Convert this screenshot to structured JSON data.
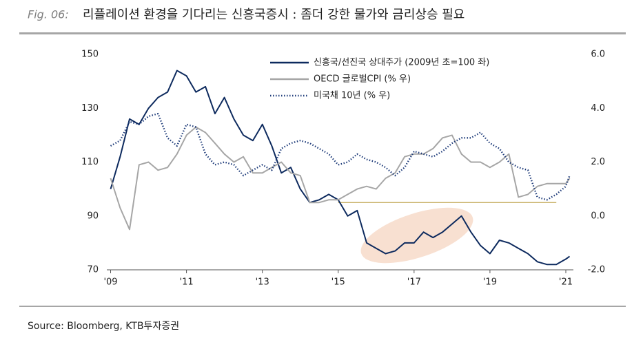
{
  "header": {
    "fig": "Fig. 06:",
    "title": "리플레이션 환경을 기다리는 신흥국증시 : 좀더 강한 물가와 금리상승 필요"
  },
  "source": "Source: Bloomberg, KTB투자증권",
  "chart_data": {
    "type": "line",
    "x": [
      2009.0,
      2009.25,
      2009.5,
      2009.75,
      2010.0,
      2010.25,
      2010.5,
      2010.75,
      2011.0,
      2011.25,
      2011.5,
      2011.75,
      2012.0,
      2012.25,
      2012.5,
      2012.75,
      2013.0,
      2013.25,
      2013.5,
      2013.75,
      2014.0,
      2014.25,
      2014.5,
      2014.75,
      2015.0,
      2015.25,
      2015.5,
      2015.75,
      2016.0,
      2016.25,
      2016.5,
      2016.75,
      2017.0,
      2017.25,
      2017.5,
      2017.75,
      2018.0,
      2018.25,
      2018.5,
      2018.75,
      2019.0,
      2019.25,
      2019.5,
      2019.75,
      2020.0,
      2020.25,
      2020.5,
      2020.75,
      2021.0,
      2021.1
    ],
    "series": [
      {
        "name": "신흥국/선진국 상대주가 (2009년 초=100 좌)",
        "color": "#0d2a5e",
        "style": "solid",
        "values": [
          100,
          112,
          126,
          124,
          130,
          134,
          136,
          144,
          142,
          136,
          138,
          128,
          134,
          126,
          120,
          118,
          124,
          116,
          106,
          108,
          100,
          95,
          96,
          98,
          96,
          90,
          92,
          80,
          78,
          76,
          77,
          80,
          80,
          84,
          82,
          84,
          87,
          90,
          84,
          79,
          76,
          81,
          80,
          78,
          76,
          73,
          72,
          72,
          74,
          75
        ]
      },
      {
        "name": "OECD 글로벌CPI (% 우)",
        "color": "#a6a6a6",
        "style": "solid",
        "axis": "y2",
        "values": [
          1.4,
          0.3,
          -0.5,
          1.9,
          2.0,
          1.7,
          1.8,
          2.3,
          3.0,
          3.3,
          3.1,
          2.7,
          2.3,
          2.0,
          2.2,
          1.6,
          1.6,
          1.8,
          2.0,
          1.6,
          1.5,
          0.5,
          0.5,
          0.6,
          0.6,
          0.8,
          1.0,
          1.1,
          1.0,
          1.4,
          1.6,
          2.2,
          2.3,
          2.3,
          2.5,
          2.9,
          3.0,
          2.3,
          2.0,
          2.0,
          1.8,
          2.0,
          2.3,
          0.7,
          0.8,
          1.1,
          1.2,
          1.2,
          1.2,
          1.4
        ]
      },
      {
        "name": "미국채 10년 (% 우)",
        "color": "#1f3c7a",
        "style": "dotted",
        "axis": "y2",
        "values": [
          2.6,
          2.8,
          3.5,
          3.4,
          3.7,
          3.8,
          2.9,
          2.6,
          3.4,
          3.3,
          2.3,
          1.9,
          2.0,
          1.9,
          1.5,
          1.7,
          1.9,
          1.7,
          2.5,
          2.7,
          2.8,
          2.7,
          2.5,
          2.3,
          1.9,
          2.0,
          2.3,
          2.1,
          2.0,
          1.8,
          1.5,
          1.8,
          2.4,
          2.3,
          2.2,
          2.4,
          2.7,
          2.9,
          2.9,
          3.1,
          2.7,
          2.5,
          2.0,
          1.8,
          1.7,
          0.7,
          0.6,
          0.8,
          1.1,
          1.5
        ]
      }
    ],
    "xlim": [
      2008.9,
      2021.2
    ],
    "xticks": [
      {
        "value": 2009,
        "label": "'09"
      },
      {
        "value": 2011,
        "label": "'11"
      },
      {
        "value": 2013,
        "label": "'13"
      },
      {
        "value": 2015,
        "label": "'15"
      },
      {
        "value": 2017,
        "label": "'17"
      },
      {
        "value": 2019,
        "label": "'19"
      },
      {
        "value": 2021,
        "label": "'21"
      }
    ],
    "ylim": [
      70,
      150
    ],
    "yticks": [
      70,
      90,
      110,
      130,
      150
    ],
    "y2lim": [
      -2,
      6
    ],
    "y2ticks": [
      {
        "value": -2,
        "label": "-2.0"
      },
      {
        "value": 0,
        "label": "0.0"
      },
      {
        "value": 2,
        "label": "2.0"
      },
      {
        "value": 4,
        "label": "4.0"
      },
      {
        "value": 6,
        "label": "6.0"
      }
    ],
    "reference_line": {
      "value": 95,
      "x": [
        2015,
        2020.75
      ],
      "color": "#b89a3a"
    }
  }
}
